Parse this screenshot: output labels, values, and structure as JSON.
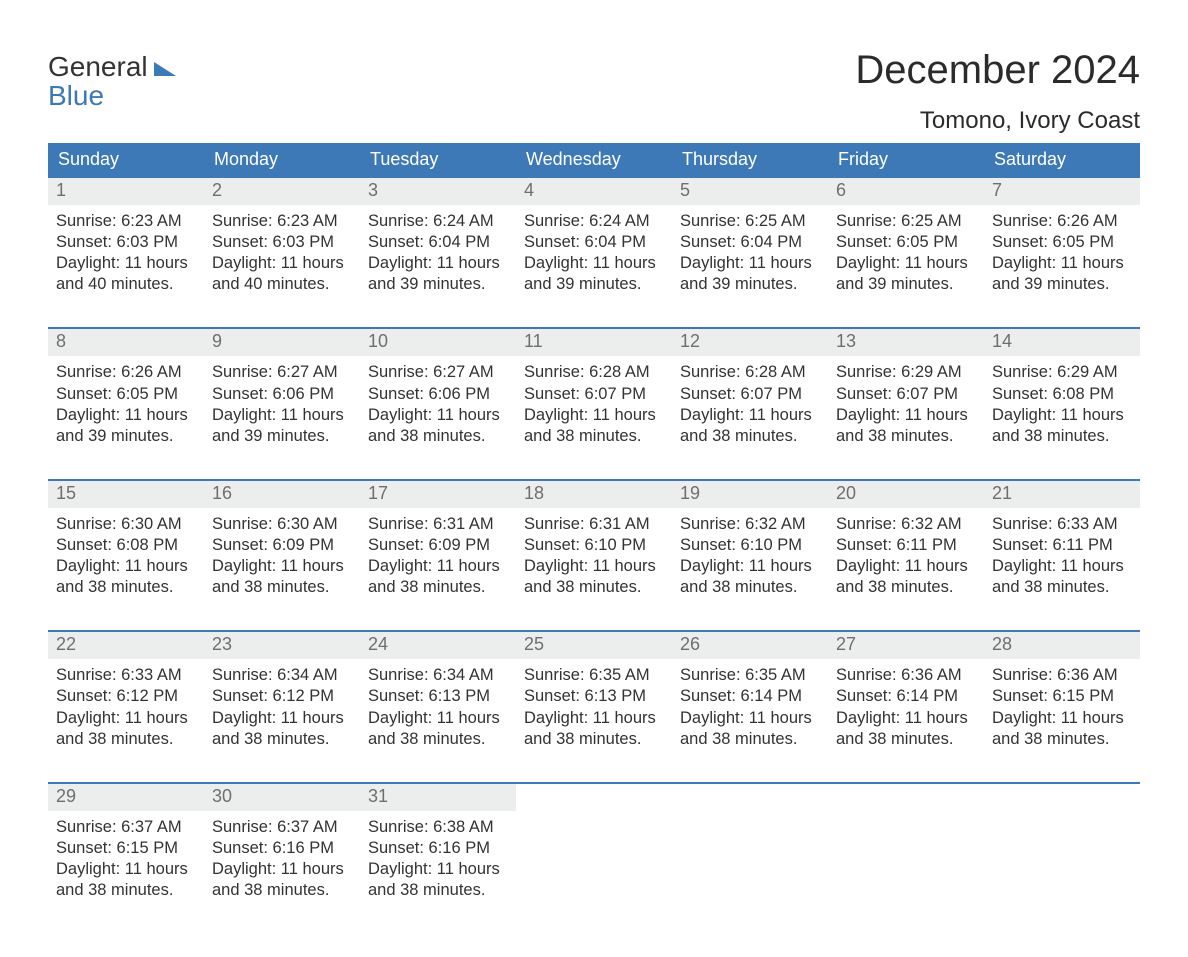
{
  "logo": {
    "line1": "General",
    "line2": "Blue"
  },
  "title": "December 2024",
  "location": "Tomono, Ivory Coast",
  "colors": {
    "header_bg": "#3d79b6",
    "header_text": "#ffffff",
    "daynum_bg": "#eceded",
    "daynum_text": "#6f6f6f",
    "body_text": "#333333",
    "week_border": "#3d79b6",
    "page_bg": "#ffffff",
    "logo_blue": "#3d79b6"
  },
  "typography": {
    "title_fontsize": 40,
    "location_fontsize": 24,
    "header_fontsize": 18,
    "daynum_fontsize": 18,
    "body_fontsize": 16.5,
    "font_family": "Arial"
  },
  "layout": {
    "columns": 7,
    "rows": 5,
    "start_weekday": "Sunday",
    "first_day_column": 0,
    "days_in_month": 31
  },
  "weekdays": [
    "Sunday",
    "Monday",
    "Tuesday",
    "Wednesday",
    "Thursday",
    "Friday",
    "Saturday"
  ],
  "days": [
    {
      "n": "1",
      "sunrise": "Sunrise: 6:23 AM",
      "sunset": "Sunset: 6:03 PM",
      "d1": "Daylight: 11 hours",
      "d2": "and 40 minutes."
    },
    {
      "n": "2",
      "sunrise": "Sunrise: 6:23 AM",
      "sunset": "Sunset: 6:03 PM",
      "d1": "Daylight: 11 hours",
      "d2": "and 40 minutes."
    },
    {
      "n": "3",
      "sunrise": "Sunrise: 6:24 AM",
      "sunset": "Sunset: 6:04 PM",
      "d1": "Daylight: 11 hours",
      "d2": "and 39 minutes."
    },
    {
      "n": "4",
      "sunrise": "Sunrise: 6:24 AM",
      "sunset": "Sunset: 6:04 PM",
      "d1": "Daylight: 11 hours",
      "d2": "and 39 minutes."
    },
    {
      "n": "5",
      "sunrise": "Sunrise: 6:25 AM",
      "sunset": "Sunset: 6:04 PM",
      "d1": "Daylight: 11 hours",
      "d2": "and 39 minutes."
    },
    {
      "n": "6",
      "sunrise": "Sunrise: 6:25 AM",
      "sunset": "Sunset: 6:05 PM",
      "d1": "Daylight: 11 hours",
      "d2": "and 39 minutes."
    },
    {
      "n": "7",
      "sunrise": "Sunrise: 6:26 AM",
      "sunset": "Sunset: 6:05 PM",
      "d1": "Daylight: 11 hours",
      "d2": "and 39 minutes."
    },
    {
      "n": "8",
      "sunrise": "Sunrise: 6:26 AM",
      "sunset": "Sunset: 6:05 PM",
      "d1": "Daylight: 11 hours",
      "d2": "and 39 minutes."
    },
    {
      "n": "9",
      "sunrise": "Sunrise: 6:27 AM",
      "sunset": "Sunset: 6:06 PM",
      "d1": "Daylight: 11 hours",
      "d2": "and 39 minutes."
    },
    {
      "n": "10",
      "sunrise": "Sunrise: 6:27 AM",
      "sunset": "Sunset: 6:06 PM",
      "d1": "Daylight: 11 hours",
      "d2": "and 38 minutes."
    },
    {
      "n": "11",
      "sunrise": "Sunrise: 6:28 AM",
      "sunset": "Sunset: 6:07 PM",
      "d1": "Daylight: 11 hours",
      "d2": "and 38 minutes."
    },
    {
      "n": "12",
      "sunrise": "Sunrise: 6:28 AM",
      "sunset": "Sunset: 6:07 PM",
      "d1": "Daylight: 11 hours",
      "d2": "and 38 minutes."
    },
    {
      "n": "13",
      "sunrise": "Sunrise: 6:29 AM",
      "sunset": "Sunset: 6:07 PM",
      "d1": "Daylight: 11 hours",
      "d2": "and 38 minutes."
    },
    {
      "n": "14",
      "sunrise": "Sunrise: 6:29 AM",
      "sunset": "Sunset: 6:08 PM",
      "d1": "Daylight: 11 hours",
      "d2": "and 38 minutes."
    },
    {
      "n": "15",
      "sunrise": "Sunrise: 6:30 AM",
      "sunset": "Sunset: 6:08 PM",
      "d1": "Daylight: 11 hours",
      "d2": "and 38 minutes."
    },
    {
      "n": "16",
      "sunrise": "Sunrise: 6:30 AM",
      "sunset": "Sunset: 6:09 PM",
      "d1": "Daylight: 11 hours",
      "d2": "and 38 minutes."
    },
    {
      "n": "17",
      "sunrise": "Sunrise: 6:31 AM",
      "sunset": "Sunset: 6:09 PM",
      "d1": "Daylight: 11 hours",
      "d2": "and 38 minutes."
    },
    {
      "n": "18",
      "sunrise": "Sunrise: 6:31 AM",
      "sunset": "Sunset: 6:10 PM",
      "d1": "Daylight: 11 hours",
      "d2": "and 38 minutes."
    },
    {
      "n": "19",
      "sunrise": "Sunrise: 6:32 AM",
      "sunset": "Sunset: 6:10 PM",
      "d1": "Daylight: 11 hours",
      "d2": "and 38 minutes."
    },
    {
      "n": "20",
      "sunrise": "Sunrise: 6:32 AM",
      "sunset": "Sunset: 6:11 PM",
      "d1": "Daylight: 11 hours",
      "d2": "and 38 minutes."
    },
    {
      "n": "21",
      "sunrise": "Sunrise: 6:33 AM",
      "sunset": "Sunset: 6:11 PM",
      "d1": "Daylight: 11 hours",
      "d2": "and 38 minutes."
    },
    {
      "n": "22",
      "sunrise": "Sunrise: 6:33 AM",
      "sunset": "Sunset: 6:12 PM",
      "d1": "Daylight: 11 hours",
      "d2": "and 38 minutes."
    },
    {
      "n": "23",
      "sunrise": "Sunrise: 6:34 AM",
      "sunset": "Sunset: 6:12 PM",
      "d1": "Daylight: 11 hours",
      "d2": "and 38 minutes."
    },
    {
      "n": "24",
      "sunrise": "Sunrise: 6:34 AM",
      "sunset": "Sunset: 6:13 PM",
      "d1": "Daylight: 11 hours",
      "d2": "and 38 minutes."
    },
    {
      "n": "25",
      "sunrise": "Sunrise: 6:35 AM",
      "sunset": "Sunset: 6:13 PM",
      "d1": "Daylight: 11 hours",
      "d2": "and 38 minutes."
    },
    {
      "n": "26",
      "sunrise": "Sunrise: 6:35 AM",
      "sunset": "Sunset: 6:14 PM",
      "d1": "Daylight: 11 hours",
      "d2": "and 38 minutes."
    },
    {
      "n": "27",
      "sunrise": "Sunrise: 6:36 AM",
      "sunset": "Sunset: 6:14 PM",
      "d1": "Daylight: 11 hours",
      "d2": "and 38 minutes."
    },
    {
      "n": "28",
      "sunrise": "Sunrise: 6:36 AM",
      "sunset": "Sunset: 6:15 PM",
      "d1": "Daylight: 11 hours",
      "d2": "and 38 minutes."
    },
    {
      "n": "29",
      "sunrise": "Sunrise: 6:37 AM",
      "sunset": "Sunset: 6:15 PM",
      "d1": "Daylight: 11 hours",
      "d2": "and 38 minutes."
    },
    {
      "n": "30",
      "sunrise": "Sunrise: 6:37 AM",
      "sunset": "Sunset: 6:16 PM",
      "d1": "Daylight: 11 hours",
      "d2": "and 38 minutes."
    },
    {
      "n": "31",
      "sunrise": "Sunrise: 6:38 AM",
      "sunset": "Sunset: 6:16 PM",
      "d1": "Daylight: 11 hours",
      "d2": "and 38 minutes."
    }
  ]
}
